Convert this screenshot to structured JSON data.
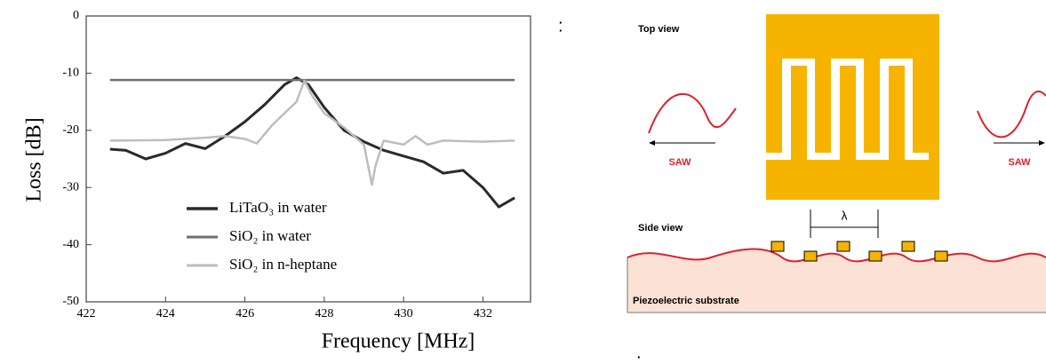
{
  "chart_data": {
    "type": "line",
    "x_label": "Frequency [MHz]",
    "y_label": "Loss [dB]",
    "xlim": [
      422,
      433.2
    ],
    "xticks": [
      422,
      424,
      426,
      428,
      430,
      432
    ],
    "ylim": [
      -50,
      0
    ],
    "yticks": [
      -50,
      -40,
      -30,
      -20,
      -10,
      0
    ],
    "legend": "lower left",
    "series": [
      {
        "name": "LiTaO₃ in water",
        "color": "#2a2a2a",
        "width": 3,
        "x": [
          422.6,
          423,
          423.5,
          424,
          424.5,
          425,
          425.5,
          426,
          426.5,
          427,
          427.3,
          427.6,
          428,
          428.5,
          429,
          429.5,
          430,
          430.5,
          431,
          431.5,
          432,
          432.4,
          432.8
        ],
        "values": [
          -23.3,
          -23.5,
          -25,
          -24,
          -22.3,
          -23.2,
          -21,
          -18.5,
          -15.5,
          -12,
          -10.8,
          -12,
          -16,
          -20,
          -22,
          -23.5,
          -24.5,
          -25.5,
          -27.5,
          -27,
          -30,
          -33.4,
          -31.8
        ]
      },
      {
        "name": "SiO₂ in water",
        "color": "#6f6f6f",
        "width": 2.5,
        "x": [
          422.6,
          425,
          427,
          429,
          431,
          432.8
        ],
        "values": [
          -11.2,
          -11.2,
          -11.2,
          -11.2,
          -11.2,
          -11.2
        ]
      },
      {
        "name": "SiO₂ in n-heptane",
        "color": "#bdbdbd",
        "width": 2.5,
        "x": [
          422.6,
          424,
          425,
          425.5,
          426,
          426.3,
          426.7,
          427,
          427.3,
          427.5,
          427.7,
          428,
          428.5,
          429,
          429.1,
          429.2,
          429.3,
          429.5,
          430,
          430.3,
          430.6,
          431,
          432,
          432.8
        ],
        "values": [
          -21.8,
          -21.7,
          -21.3,
          -21,
          -21.5,
          -22.3,
          -19,
          -17,
          -15,
          -11.3,
          -14,
          -17,
          -19.5,
          -22.5,
          -26,
          -29.5,
          -26,
          -21.8,
          -22.5,
          -21,
          -22.5,
          -21.8,
          -22,
          -21.8
        ]
      }
    ]
  },
  "diagram": {
    "top_view": "Top view",
    "side_view": "Side view",
    "left_wave": "SAW",
    "right_wave": "SAW",
    "wavelength": "λ",
    "substrate": "Piezoelectric substrate"
  },
  "annotations": [
    ":",
    "."
  ]
}
